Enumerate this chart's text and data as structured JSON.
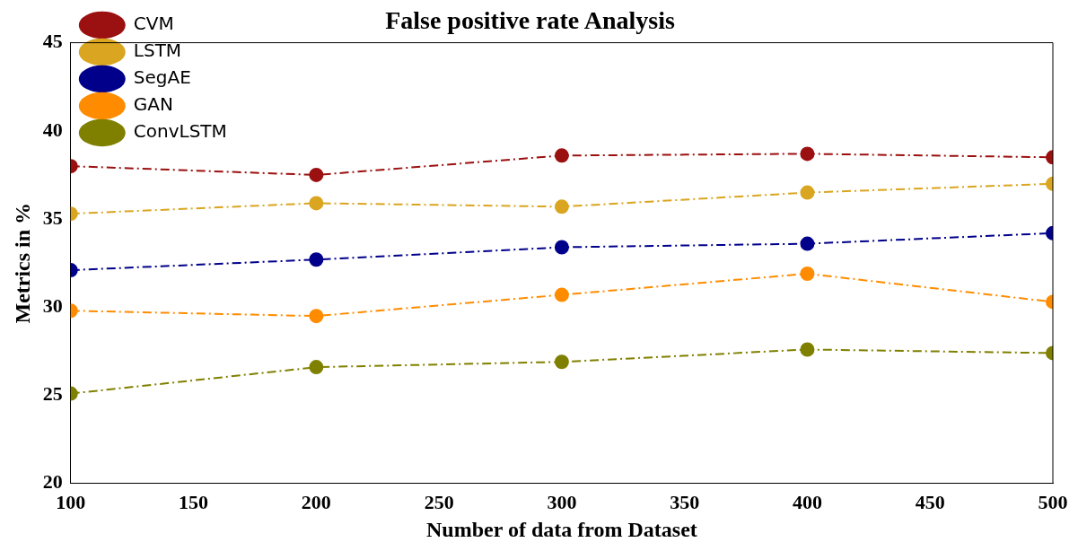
{
  "chart_data": {
    "type": "line",
    "title": "False positive rate Analysis",
    "xlabel": "Number of data from Dataset",
    "ylabel": "Metrics in %",
    "x": [
      100,
      200,
      300,
      400,
      500
    ],
    "series": [
      {
        "name": "CVM",
        "color": "#9b1010",
        "values": [
          38.0,
          37.5,
          38.6,
          38.7,
          38.5
        ]
      },
      {
        "name": "LSTM",
        "color": "#daa520",
        "values": [
          35.3,
          35.9,
          35.7,
          36.5,
          37.0
        ]
      },
      {
        "name": "SegAE",
        "color": "#00008b",
        "values": [
          32.1,
          32.7,
          33.4,
          33.6,
          34.2
        ]
      },
      {
        "name": "GAN",
        "color": "#ff8c00",
        "values": [
          29.8,
          29.5,
          30.7,
          31.9,
          30.3
        ]
      },
      {
        "name": "ConvLSTM",
        "color": "#808000",
        "values": [
          25.1,
          26.6,
          26.9,
          27.6,
          27.4
        ]
      }
    ],
    "xlim": [
      100,
      500
    ],
    "xticks": [
      100,
      150,
      200,
      250,
      300,
      350,
      400,
      450,
      500
    ],
    "ylim": [
      20,
      45
    ],
    "yticks": [
      20,
      25,
      30,
      35,
      40,
      45
    ],
    "grid": false,
    "legend": "top left",
    "marker": "circle",
    "line_style": "dashed"
  }
}
